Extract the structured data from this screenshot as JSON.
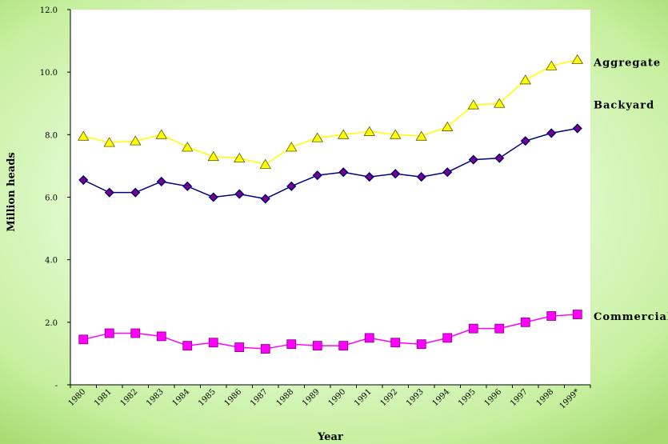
{
  "chart_data": {
    "type": "line",
    "title": "",
    "xlabel": "Year",
    "ylabel": "Million heads",
    "categories": [
      "1980",
      "1981",
      "1982",
      "1983",
      "1984",
      "1985",
      "1986",
      "1987",
      "1988",
      "1989",
      "1990",
      "1991",
      "1992",
      "1993",
      "1994",
      "1995",
      "1996",
      "1997",
      "1998",
      "1999*"
    ],
    "y_ticks": [
      "-",
      "2.0",
      "4.0",
      "6.0",
      "8.0",
      "10.0",
      "12.0"
    ],
    "ylim": [
      0,
      12
    ],
    "grid": false,
    "legend": "series labels at right end of lines",
    "series": [
      {
        "name": "Aggregate",
        "color": "#ffff00",
        "marker": "triangle",
        "values": [
          7.95,
          7.75,
          7.8,
          8.0,
          7.6,
          7.3,
          7.25,
          7.05,
          7.6,
          7.9,
          8.0,
          8.1,
          8.0,
          7.95,
          8.25,
          8.95,
          9.0,
          9.75,
          10.2,
          10.4
        ]
      },
      {
        "name": "Backyard",
        "color": "#000080",
        "marker": "diamond",
        "marker_color": "#800080",
        "values": [
          6.55,
          6.15,
          6.15,
          6.5,
          6.35,
          6.0,
          6.1,
          5.95,
          6.35,
          6.7,
          6.8,
          6.65,
          6.75,
          6.65,
          6.8,
          7.2,
          7.25,
          7.8,
          8.05,
          8.2
        ]
      },
      {
        "name": "Commercial",
        "color": "#ff00ff",
        "marker": "square",
        "values": [
          1.45,
          1.65,
          1.65,
          1.55,
          1.25,
          1.35,
          1.2,
          1.15,
          1.3,
          1.25,
          1.25,
          1.5,
          1.35,
          1.3,
          1.5,
          1.8,
          1.8,
          2.0,
          2.2,
          2.25
        ]
      }
    ]
  }
}
